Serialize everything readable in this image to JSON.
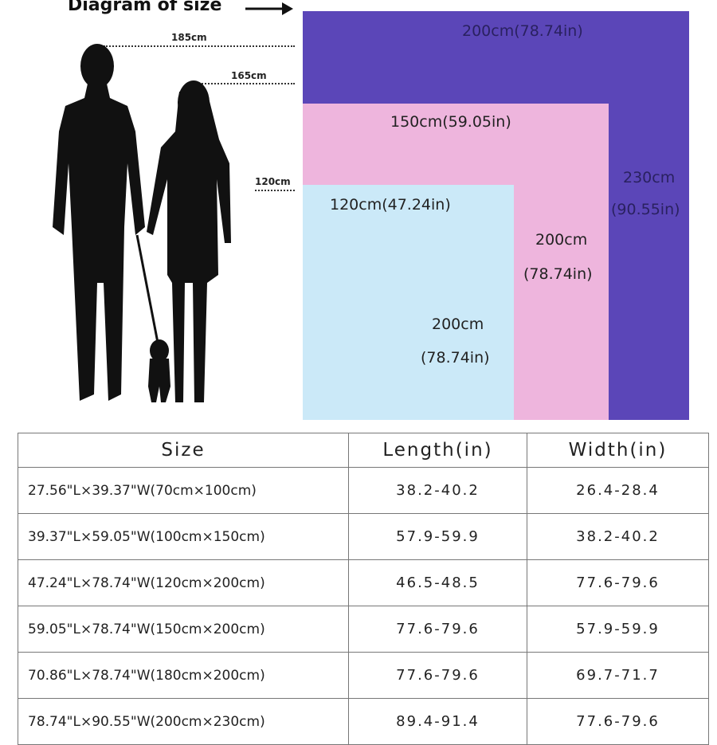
{
  "title": "Diagram of size",
  "heights": {
    "man": "185cm",
    "woman": "165cm",
    "dog": "120cm"
  },
  "colors": {
    "large": "#5b46b8",
    "medium": "#eeb5dd",
    "small": "#cbe9f8"
  },
  "boxes": {
    "large": {
      "width": "200cm(78.74in)",
      "length_cm": "230cm",
      "length_in": "(90.55in)"
    },
    "medium": {
      "width": "150cm(59.05in)",
      "length_cm": "200cm",
      "length_in": "(78.74in)"
    },
    "small": {
      "width": "120cm(47.24in)",
      "length_cm": "200cm",
      "length_in": "(78.74in)"
    }
  },
  "table": {
    "headers": [
      "Size",
      "Length(in)",
      "Width(in)"
    ],
    "rows": [
      [
        "27.56\"L×39.37\"W(70cm×100cm)",
        "38.2-40.2",
        "26.4-28.4"
      ],
      [
        "39.37\"L×59.05\"W(100cm×150cm)",
        "57.9-59.9",
        "38.2-40.2"
      ],
      [
        "47.24\"L×78.74\"W(120cm×200cm)",
        "46.5-48.5",
        "77.6-79.6"
      ],
      [
        "59.05\"L×78.74\"W(150cm×200cm)",
        "77.6-79.6",
        "57.9-59.9"
      ],
      [
        "70.86\"L×78.74\"W(180cm×200cm)",
        "77.6-79.6",
        "69.7-71.7"
      ],
      [
        "78.74\"L×90.55\"W(200cm×230cm)",
        "89.4-91.4",
        "77.6-79.6"
      ]
    ]
  }
}
